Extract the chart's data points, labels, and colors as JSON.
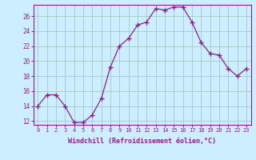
{
  "hours": [
    0,
    1,
    2,
    3,
    4,
    5,
    6,
    7,
    8,
    9,
    10,
    11,
    12,
    13,
    14,
    15,
    16,
    17,
    18,
    19,
    20,
    21,
    22,
    23
  ],
  "values": [
    14.0,
    15.5,
    15.5,
    14.0,
    11.8,
    11.8,
    12.8,
    15.0,
    19.2,
    22.0,
    23.0,
    24.8,
    25.2,
    27.0,
    26.8,
    27.2,
    27.2,
    25.2,
    22.5,
    21.0,
    20.8,
    19.0,
    18.0,
    19.0
  ],
  "line_color": "#882288",
  "marker": "+",
  "bg_color": "#cceeff",
  "grid_color": "#aacccc",
  "xlabel": "Windchill (Refroidissement éolien,°C)",
  "ylim": [
    11.5,
    27.5
  ],
  "yticks": [
    12,
    14,
    16,
    18,
    20,
    22,
    24,
    26
  ],
  "label_color": "#882288",
  "spine_color": "#882288"
}
